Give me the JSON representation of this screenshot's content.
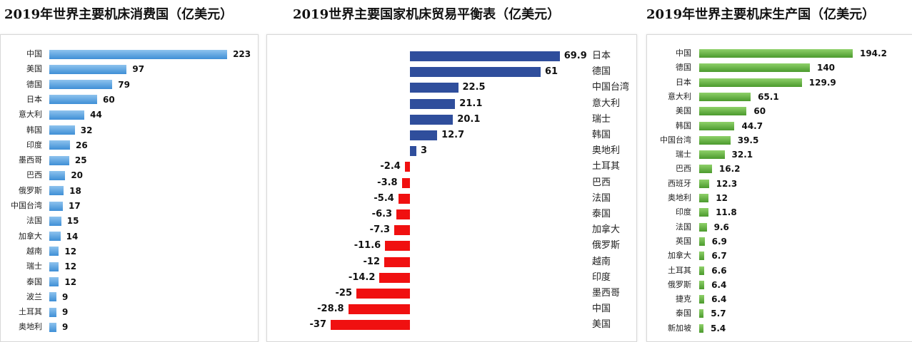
{
  "chart_data": [
    {
      "type": "bar",
      "orientation": "horizontal",
      "title": "2019年世界主要机床消费国（亿美元）",
      "categories": [
        "中国",
        "美国",
        "德国",
        "日本",
        "意大利",
        "韩国",
        "印度",
        "墨西哥",
        "巴西",
        "俄罗斯",
        "中国台湾",
        "法国",
        "加拿大",
        "越南",
        "瑞士",
        "泰国",
        "波兰",
        "土耳其",
        "奥地利"
      ],
      "values": [
        223,
        97,
        79,
        60,
        44,
        32,
        26,
        25,
        20,
        18,
        17,
        15,
        14,
        12,
        12,
        12,
        9,
        9,
        9
      ],
      "color": "#4a95d9"
    },
    {
      "type": "bar",
      "orientation": "horizontal",
      "title": "2019世界主要国家机床贸易平衡表（亿美元）",
      "categories": [
        "日本",
        "德国",
        "中国台湾",
        "意大利",
        "瑞士",
        "韩国",
        "奥地利",
        "土耳其",
        "巴西",
        "法国",
        "泰国",
        "加拿大",
        "俄罗斯",
        "越南",
        "印度",
        "墨西哥",
        "中国",
        "美国"
      ],
      "values": [
        69.9,
        61,
        22.5,
        21.1,
        20.1,
        12.7,
        3,
        -2.4,
        -3.8,
        -5.4,
        -6.3,
        -7.3,
        -11.6,
        -12,
        -14.2,
        -25,
        -28.8,
        -37
      ],
      "positive_color": "#2f4e9c",
      "negative_color": "#f01010"
    },
    {
      "type": "bar",
      "orientation": "horizontal",
      "title": "2019年世界主要机床生产国（亿美元）",
      "categories": [
        "中国",
        "德国",
        "日本",
        "意大利",
        "美国",
        "韩国",
        "中国台湾",
        "瑞士",
        "巴西",
        "西班牙",
        "奥地利",
        "印度",
        "法国",
        "英国",
        "加拿大",
        "土耳其",
        "俄罗斯",
        "捷克",
        "泰国",
        "新加坡"
      ],
      "values": [
        194.2,
        140,
        129.9,
        65.1,
        60,
        44.7,
        39.5,
        32.1,
        16.2,
        12.3,
        12,
        11.8,
        9.6,
        6.9,
        6.7,
        6.6,
        6.4,
        6.4,
        5.7,
        5.4
      ],
      "color": "#5aab37"
    }
  ]
}
